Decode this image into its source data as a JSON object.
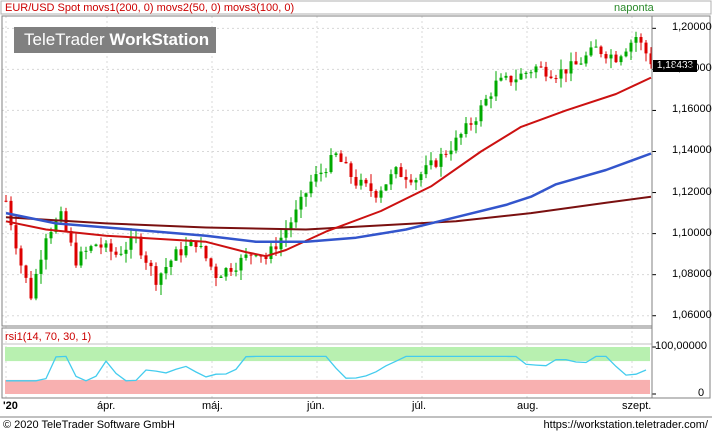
{
  "header": {
    "indicators": "EUR/USD Spot  movs1(200, 0)  movs2(50, 0)  movs3(100, 0)",
    "period": "naponta",
    "watermark_regular": "TeleTrader ",
    "watermark_bold": "WorkStation",
    "last_price": "1,18433"
  },
  "rsi_panel": {
    "title": "rsi1(14, 70, 30, 1)",
    "ticks": [
      "100,00000",
      "0"
    ],
    "upper_band": 70,
    "lower_band": 30
  },
  "footer": {
    "copyright": "© 2020 TeleTrader Software GmbH",
    "url": "https://workstation.teletrader.com/"
  },
  "colors": {
    "up_candle": "#00aa00",
    "down_candle": "#dd0000",
    "ma_200": "#7a1010",
    "ma_50": "#cc1111",
    "ma_100": "#3355cc",
    "rsi_line": "#44ccee",
    "overbought_zone": "#b8f0b0",
    "oversold_zone": "#f8b0b0"
  },
  "chart_data": {
    "type": "candlestick",
    "price_axis": {
      "ticks": [
        "1,20000",
        "1,18000",
        "1,16000",
        "1,14000",
        "1,12000",
        "1,10000",
        "1,08000",
        "1,06000"
      ],
      "ylim": [
        1.055,
        1.206
      ]
    },
    "x_axis": {
      "ticks": [
        "'20",
        "ápr.",
        "máj.",
        "jún.",
        "júl.",
        "aug.",
        "szept."
      ]
    },
    "x_anchor_days": [
      0,
      21,
      42,
      63,
      84,
      105,
      126
    ],
    "series": [
      {
        "name": "movs1(200, 0)",
        "color": "#7a1010",
        "points": [
          [
            0,
            1.108
          ],
          [
            20,
            1.105
          ],
          [
            40,
            1.103
          ],
          [
            60,
            1.102
          ],
          [
            75,
            1.104
          ],
          [
            90,
            1.106
          ],
          [
            105,
            1.11
          ],
          [
            120,
            1.115
          ],
          [
            129,
            1.118
          ]
        ]
      },
      {
        "name": "movs2(50, 0)",
        "color": "#cc1111",
        "points": [
          [
            0,
            1.106
          ],
          [
            8,
            1.102
          ],
          [
            20,
            1.099
          ],
          [
            40,
            1.096
          ],
          [
            48,
            1.091
          ],
          [
            52,
            1.089
          ],
          [
            56,
            1.092
          ],
          [
            64,
            1.101
          ],
          [
            75,
            1.111
          ],
          [
            85,
            1.123
          ],
          [
            95,
            1.14
          ],
          [
            103,
            1.152
          ],
          [
            112,
            1.16
          ],
          [
            122,
            1.168
          ],
          [
            129,
            1.176
          ]
        ]
      },
      {
        "name": "movs3(100, 0)",
        "color": "#3355cc",
        "points": [
          [
            0,
            1.11
          ],
          [
            10,
            1.105
          ],
          [
            25,
            1.102
          ],
          [
            40,
            1.099
          ],
          [
            50,
            1.096
          ],
          [
            60,
            1.096
          ],
          [
            70,
            1.098
          ],
          [
            80,
            1.102
          ],
          [
            90,
            1.108
          ],
          [
            100,
            1.114
          ],
          [
            105,
            1.118
          ],
          [
            110,
            1.124
          ],
          [
            120,
            1.131
          ],
          [
            129,
            1.139
          ]
        ]
      },
      {
        "name": "price",
        "color": "#00aa00",
        "points": [
          [
            0,
            1.116
          ],
          [
            3,
            1.085
          ],
          [
            5,
            1.07
          ],
          [
            8,
            1.1
          ],
          [
            11,
            1.108
          ],
          [
            14,
            1.087
          ],
          [
            18,
            1.095
          ],
          [
            22,
            1.09
          ],
          [
            26,
            1.097
          ],
          [
            30,
            1.078
          ],
          [
            34,
            1.09
          ],
          [
            38,
            1.096
          ],
          [
            42,
            1.08
          ],
          [
            46,
            1.085
          ],
          [
            50,
            1.092
          ],
          [
            52,
            1.088
          ],
          [
            55,
            1.098
          ],
          [
            58,
            1.11
          ],
          [
            61,
            1.125
          ],
          [
            63,
            1.13
          ],
          [
            66,
            1.138
          ],
          [
            70,
            1.125
          ],
          [
            74,
            1.12
          ],
          [
            78,
            1.13
          ],
          [
            82,
            1.127
          ],
          [
            86,
            1.135
          ],
          [
            90,
            1.145
          ],
          [
            94,
            1.157
          ],
          [
            98,
            1.173
          ],
          [
            102,
            1.176
          ],
          [
            106,
            1.181
          ],
          [
            110,
            1.178
          ],
          [
            114,
            1.182
          ],
          [
            118,
            1.19
          ],
          [
            122,
            1.186
          ],
          [
            126,
            1.196
          ],
          [
            129,
            1.184
          ]
        ]
      }
    ]
  }
}
